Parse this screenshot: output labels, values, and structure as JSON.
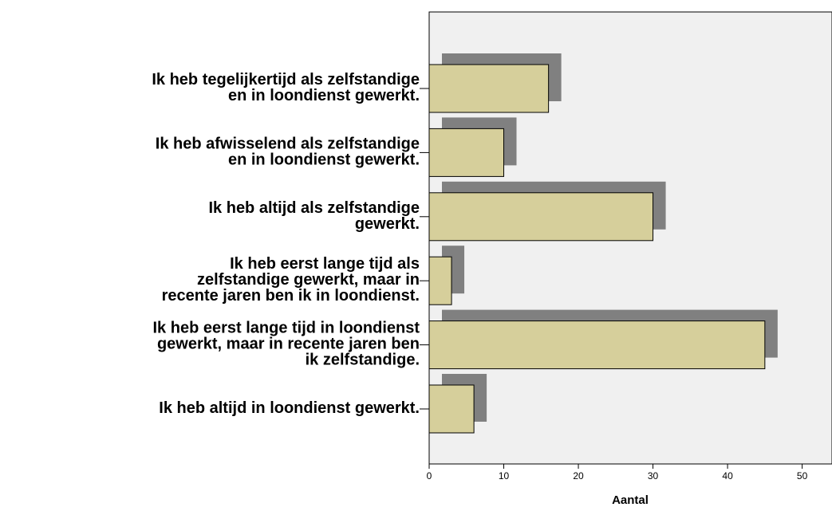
{
  "chart_data": {
    "type": "bar",
    "orientation": "horizontal",
    "x_label": "Aantal",
    "categories": [
      "Ik heb tegelijkertijd als zelfstandige\nen in loondienst gewerkt.",
      "Ik heb afwisselend als zelfstandige\nen in loondienst gewerkt.",
      "Ik heb altijd als zelfstandige\ngewerkt.",
      "Ik heb eerst lange tijd als\nzelfstandige gewerkt, maar in\nrecente jaren ben ik in loondienst.",
      "Ik heb eerst lange tijd in loondienst\ngewerkt, maar in recente jaren ben\nik zelfstandige.",
      "Ik heb altijd in loondienst gewerkt."
    ],
    "values": [
      16,
      10,
      30,
      3,
      45,
      6
    ],
    "color": "#d6cf9b",
    "shadow_color": "#808080",
    "background": "#f0f0f0",
    "xlim": [
      0,
      54
    ],
    "xticks": [
      0,
      10,
      20,
      30,
      40,
      50
    ]
  }
}
